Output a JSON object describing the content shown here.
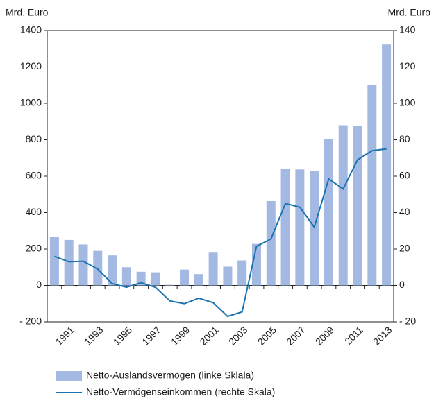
{
  "chart_data": {
    "type": "bar-line",
    "ylabel": "Mrd. Euro",
    "y2label": "Mrd. Euro",
    "categories": [
      null,
      "1991",
      null,
      "1993",
      null,
      "1995",
      null,
      "1997",
      null,
      "1999",
      null,
      "2001",
      null,
      "2003",
      null,
      "2005",
      null,
      "2007",
      null,
      "2009",
      null,
      "2011",
      null,
      "2013"
    ],
    "series": [
      {
        "name": "Netto-Auslandsvermögen (linke Sklala)",
        "type": "bar",
        "color": "#a3b9e2",
        "values": [
          265,
          250,
          225,
          190,
          165,
          100,
          75,
          72,
          3,
          87,
          62,
          180,
          103,
          137,
          228,
          463,
          642,
          637,
          627,
          802,
          880,
          877,
          1103,
          1323
        ]
      },
      {
        "name": "Netto-Vermögenseinkommen (rechte Skala)",
        "type": "line",
        "axis": "y2",
        "color": "#1a72ae",
        "values": [
          16,
          13,
          13.3,
          9,
          1,
          -1,
          1.5,
          -1,
          -8.5,
          -10,
          -7,
          -9.5,
          -17,
          -14.5,
          21.5,
          25.5,
          45,
          43,
          32,
          58.5,
          53,
          69,
          74,
          75
        ]
      }
    ],
    "ylim": [
      -200,
      1400
    ],
    "yticks": [
      1400,
      1200,
      1000,
      800,
      600,
      400,
      200,
      0,
      {
        "value": -200,
        "label": "- 200"
      }
    ],
    "y2lim": [
      -20,
      140
    ],
    "y2ticks": [
      140,
      120,
      100,
      80,
      60,
      40,
      20,
      0,
      {
        "value": -20,
        "label": "- 20"
      }
    ],
    "legend": "bottom"
  }
}
